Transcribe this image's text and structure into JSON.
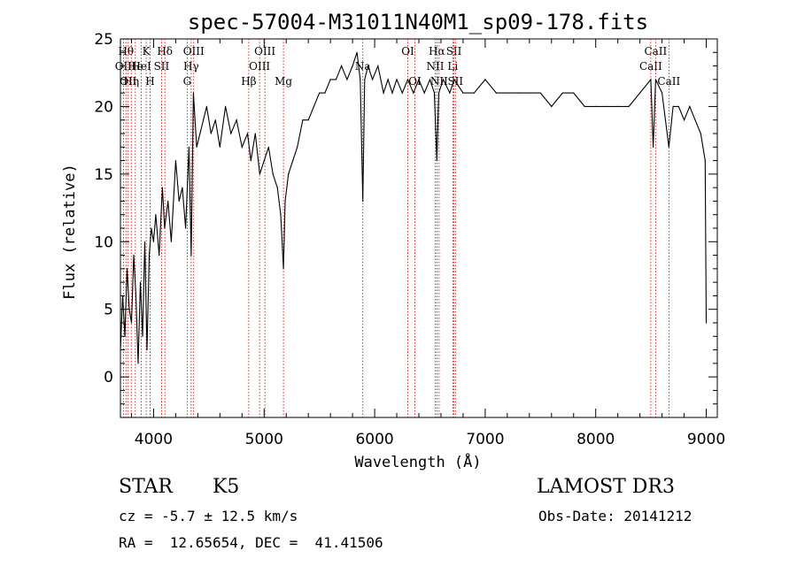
{
  "chart_data": {
    "type": "line",
    "title": "spec-57004-M31011N40M1_sp09-178.fits",
    "xlabel": "Wavelength (Å)",
    "ylabel": "Flux (relative)",
    "xlim": [
      3700,
      9100
    ],
    "ylim": [
      -3,
      25
    ],
    "xticks": [
      4000,
      5000,
      6000,
      7000,
      8000,
      9000
    ],
    "yticks": [
      0,
      5,
      10,
      15,
      20,
      25
    ],
    "series": [
      {
        "name": "flux",
        "x": [
          3700,
          3720,
          3740,
          3760,
          3780,
          3800,
          3820,
          3840,
          3860,
          3880,
          3900,
          3920,
          3940,
          3960,
          3980,
          4000,
          4020,
          4050,
          4080,
          4100,
          4130,
          4160,
          4200,
          4230,
          4260,
          4290,
          4320,
          4340,
          4360,
          4390,
          4420,
          4450,
          4480,
          4520,
          4560,
          4600,
          4650,
          4700,
          4750,
          4800,
          4850,
          4880,
          4920,
          4960,
          5000,
          5040,
          5080,
          5120,
          5150,
          5175,
          5190,
          5220,
          5260,
          5300,
          5350,
          5400,
          5450,
          5500,
          5550,
          5600,
          5650,
          5700,
          5750,
          5800,
          5840,
          5870,
          5893,
          5910,
          5940,
          5980,
          6030,
          6080,
          6120,
          6160,
          6200,
          6250,
          6300,
          6350,
          6400,
          6450,
          6500,
          6540,
          6563,
          6580,
          6620,
          6680,
          6720,
          6800,
          6900,
          7000,
          7100,
          7200,
          7300,
          7400,
          7500,
          7600,
          7700,
          7800,
          7900,
          8000,
          8100,
          8200,
          8300,
          8400,
          8498,
          8520,
          8542,
          8600,
          8662,
          8700,
          8750,
          8800,
          8850,
          8900,
          8950,
          8990,
          9000
        ],
        "values": [
          2,
          6,
          3,
          8,
          5,
          4,
          9,
          6,
          1,
          7,
          3,
          10,
          2,
          9,
          11,
          10,
          12,
          9,
          14,
          11,
          13,
          10,
          16,
          13,
          14,
          11,
          17,
          9,
          21,
          17,
          18,
          19,
          20,
          18,
          19,
          17,
          20,
          18,
          19,
          17,
          18,
          16,
          18,
          15,
          16,
          17,
          15,
          14,
          12,
          8,
          13,
          15,
          16,
          17,
          19,
          19,
          20,
          21,
          21,
          22,
          22,
          23,
          22,
          23,
          24,
          22,
          13,
          22,
          23,
          22,
          23,
          21,
          22,
          21,
          22,
          21,
          22,
          21,
          22,
          21,
          22,
          21,
          16,
          21,
          22,
          21,
          22,
          21,
          21,
          22,
          21,
          21,
          21,
          21,
          21,
          20,
          21,
          21,
          20,
          20,
          20,
          20,
          20,
          21,
          22,
          17,
          22,
          21,
          17,
          20,
          20,
          19,
          20,
          19,
          18,
          16,
          4
        ]
      }
    ],
    "lines": [
      {
        "wl": 3750,
        "label": "Hθ",
        "row": 0
      },
      {
        "wl": 3727,
        "label": "OII",
        "row": 1
      },
      {
        "wl": 3770,
        "label": "OII",
        "row": 2
      },
      {
        "wl": 3798,
        "label": "Hη",
        "row": 2
      },
      {
        "wl": 3835,
        "label": "He",
        "row": 1
      },
      {
        "wl": 3889,
        "label": "HeI",
        "row": 1
      },
      {
        "wl": 3933,
        "label": "K",
        "row": 0
      },
      {
        "wl": 3968,
        "label": "H",
        "row": 2
      },
      {
        "wl": 4072,
        "label": "SII",
        "row": 1
      },
      {
        "wl": 4102,
        "label": "Hδ",
        "row": 0
      },
      {
        "wl": 4304,
        "label": "G",
        "row": 2
      },
      {
        "wl": 4340,
        "label": "Hγ",
        "row": 1
      },
      {
        "wl": 4363,
        "label": "OIII",
        "row": 0
      },
      {
        "wl": 4861,
        "label": "Hβ",
        "row": 2
      },
      {
        "wl": 4959,
        "label": "OIII",
        "row": 1
      },
      {
        "wl": 5007,
        "label": "OIII",
        "row": 0
      },
      {
        "wl": 5175,
        "label": "Mg",
        "row": 2
      },
      {
        "wl": 5893,
        "label": "Na",
        "row": 1
      },
      {
        "wl": 6300,
        "label": "OI",
        "row": 0
      },
      {
        "wl": 6364,
        "label": "OI",
        "row": 2
      },
      {
        "wl": 6548,
        "label": "NII",
        "row": 1
      },
      {
        "wl": 6563,
        "label": "Hα",
        "row": 0
      },
      {
        "wl": 6583,
        "label": "NII",
        "row": 2
      },
      {
        "wl": 6707,
        "label": "Li",
        "row": 1
      },
      {
        "wl": 6717,
        "label": "SII",
        "row": 0
      },
      {
        "wl": 6731,
        "label": "SII",
        "row": 2
      },
      {
        "wl": 8498,
        "label": "CaII",
        "row": 1
      },
      {
        "wl": 8542,
        "label": "CaII",
        "row": 0
      },
      {
        "wl": 8662,
        "label": "CaII",
        "row": 2
      }
    ]
  },
  "info": {
    "class": "STAR",
    "subclass": "K5",
    "survey": "LAMOST DR3",
    "cz": "cz = -5.7 ± 12.5 km/s",
    "obsdate": "Obs-Date: 20141212",
    "radec": "RA =  12.65654, DEC =  41.41506"
  }
}
